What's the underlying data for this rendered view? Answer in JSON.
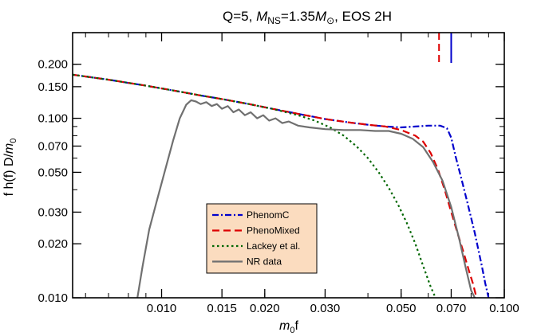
{
  "chart_data": {
    "type": "line",
    "title_parts": {
      "prefix": "Q=5, ",
      "m": "M",
      "m_sub": "NS",
      "eq": "=1.35",
      "m2": "M",
      "m2_sub": "⊙",
      "suffix": ", EOS 2H"
    },
    "xlabel_parts": {
      "m": "m",
      "sub": "0",
      "rest": "f"
    },
    "ylabel_parts": {
      "pre": "f h(f) D/",
      "m": "m",
      "sub": "0"
    },
    "xscale": "log",
    "yscale": "log",
    "xlim": [
      0.0055,
      0.1
    ],
    "ylim": [
      0.01,
      0.3
    ],
    "xtick_labels": [
      "0.010",
      "0.015",
      "0.020",
      "0.030",
      "0.050",
      "0.070",
      "0.100"
    ],
    "xtick_values": [
      0.01,
      0.015,
      0.02,
      0.03,
      0.05,
      0.07,
      0.1
    ],
    "ytick_labels": [
      "0.010",
      "0.020",
      "0.030",
      "0.050",
      "0.070",
      "0.100",
      "0.150",
      "0.200"
    ],
    "ytick_values": [
      0.01,
      0.02,
      0.03,
      0.05,
      0.07,
      0.1,
      0.15,
      0.2
    ],
    "grid": false,
    "legend_position": "lower-center",
    "series": [
      {
        "name": "PhenomC",
        "color": "#0000cc",
        "dash": "dash-dot",
        "x": [
          0.0055,
          0.007,
          0.009,
          0.011,
          0.013,
          0.015,
          0.018,
          0.021,
          0.025,
          0.03,
          0.035,
          0.04,
          0.045,
          0.05,
          0.055,
          0.06,
          0.065,
          0.068,
          0.07,
          0.072,
          0.075,
          0.078,
          0.082,
          0.086,
          0.088,
          0.09
        ],
        "y": [
          0.175,
          0.164,
          0.152,
          0.142,
          0.134,
          0.128,
          0.12,
          0.113,
          0.106,
          0.099,
          0.095,
          0.092,
          0.09,
          0.089,
          0.09,
          0.091,
          0.091,
          0.088,
          0.078,
          0.062,
          0.046,
          0.034,
          0.023,
          0.015,
          0.012,
          0.01
        ]
      },
      {
        "name": "PhenoMixed",
        "color": "#dd0000",
        "dash": "dashed",
        "x": [
          0.0055,
          0.007,
          0.009,
          0.011,
          0.013,
          0.015,
          0.018,
          0.021,
          0.025,
          0.03,
          0.035,
          0.04,
          0.045,
          0.05,
          0.055,
          0.058,
          0.061,
          0.064,
          0.067,
          0.07,
          0.073,
          0.076,
          0.079,
          0.081,
          0.083
        ],
        "y": [
          0.175,
          0.164,
          0.152,
          0.142,
          0.134,
          0.128,
          0.12,
          0.113,
          0.106,
          0.099,
          0.095,
          0.092,
          0.09,
          0.086,
          0.08,
          0.074,
          0.064,
          0.052,
          0.04,
          0.03,
          0.023,
          0.018,
          0.014,
          0.012,
          0.01
        ]
      },
      {
        "name": "Lackey et al.",
        "color": "#006600",
        "dash": "dotted",
        "x": [
          0.0055,
          0.007,
          0.009,
          0.011,
          0.013,
          0.015,
          0.018,
          0.021,
          0.025,
          0.028,
          0.031,
          0.034,
          0.037,
          0.04,
          0.043,
          0.046,
          0.049,
          0.052,
          0.055,
          0.058,
          0.061,
          0.063
        ],
        "y": [
          0.175,
          0.164,
          0.152,
          0.142,
          0.134,
          0.128,
          0.12,
          0.113,
          0.104,
          0.097,
          0.089,
          0.08,
          0.07,
          0.06,
          0.05,
          0.041,
          0.033,
          0.026,
          0.02,
          0.015,
          0.0115,
          0.01
        ]
      },
      {
        "name": "NR data",
        "color": "#707070",
        "dash": "solid",
        "x": [
          0.0085,
          0.0088,
          0.0092,
          0.0097,
          0.0102,
          0.0108,
          0.0113,
          0.0118,
          0.0122,
          0.0126,
          0.013,
          0.0135,
          0.014,
          0.0145,
          0.015,
          0.0156,
          0.0162,
          0.0168,
          0.0175,
          0.0182,
          0.019,
          0.0198,
          0.0206,
          0.0215,
          0.0225,
          0.0235,
          0.025,
          0.027,
          0.03,
          0.034,
          0.038,
          0.042,
          0.046,
          0.05,
          0.054,
          0.058,
          0.062,
          0.066,
          0.07,
          0.074,
          0.077,
          0.08,
          0.082
        ],
        "y": [
          0.01,
          0.015,
          0.024,
          0.035,
          0.05,
          0.075,
          0.1,
          0.119,
          0.126,
          0.124,
          0.12,
          0.123,
          0.117,
          0.12,
          0.113,
          0.117,
          0.108,
          0.112,
          0.104,
          0.108,
          0.1,
          0.104,
          0.097,
          0.1,
          0.094,
          0.096,
          0.091,
          0.089,
          0.087,
          0.086,
          0.086,
          0.085,
          0.085,
          0.082,
          0.077,
          0.069,
          0.057,
          0.045,
          0.032,
          0.021,
          0.015,
          0.011,
          0.01
        ]
      }
    ],
    "markers": [
      {
        "series": "PhenoMixed",
        "x": 0.0645,
        "color": "#dd0000",
        "dash": "dashed"
      },
      {
        "series": "PhenomC",
        "x": 0.07,
        "color": "#0000cc",
        "dash": "solid"
      }
    ]
  },
  "legend_bg": "#fbdcbf"
}
